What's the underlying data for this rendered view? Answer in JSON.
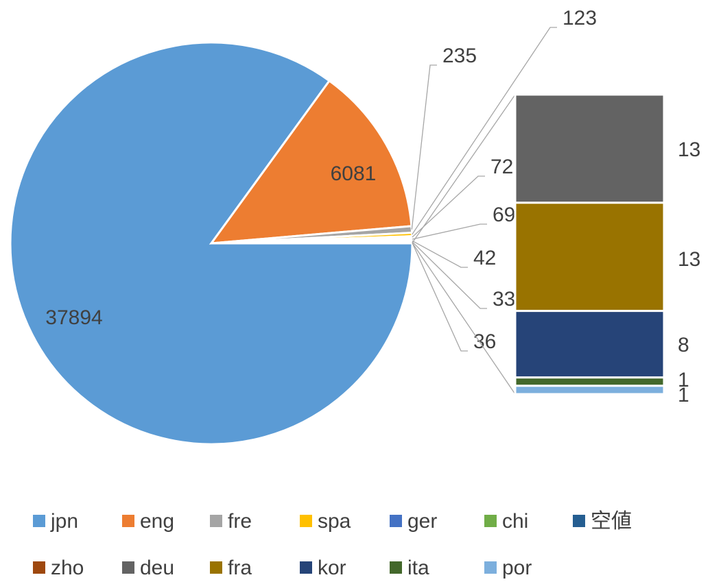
{
  "chart_data": {
    "type": "bar-of-pie",
    "categories": [
      "jpn",
      "eng",
      "fre",
      "spa",
      "ger",
      "chi",
      "空値",
      "zho",
      "deu",
      "fra",
      "kor",
      "ita",
      "por"
    ],
    "values": [
      37894,
      6081,
      235,
      123,
      72,
      69,
      42,
      33,
      13,
      13,
      8,
      1,
      1
    ],
    "secondary_count": 5,
    "other_value": 36,
    "colors": [
      "#5b9bd5",
      "#ed7d31",
      "#a5a5a5",
      "#ffc000",
      "#4472c4",
      "#70ad47",
      "#255e91",
      "#9e480e",
      "#636363",
      "#997300",
      "#264478",
      "#43682b",
      "#7cafdd"
    ],
    "legend": "bottom"
  }
}
